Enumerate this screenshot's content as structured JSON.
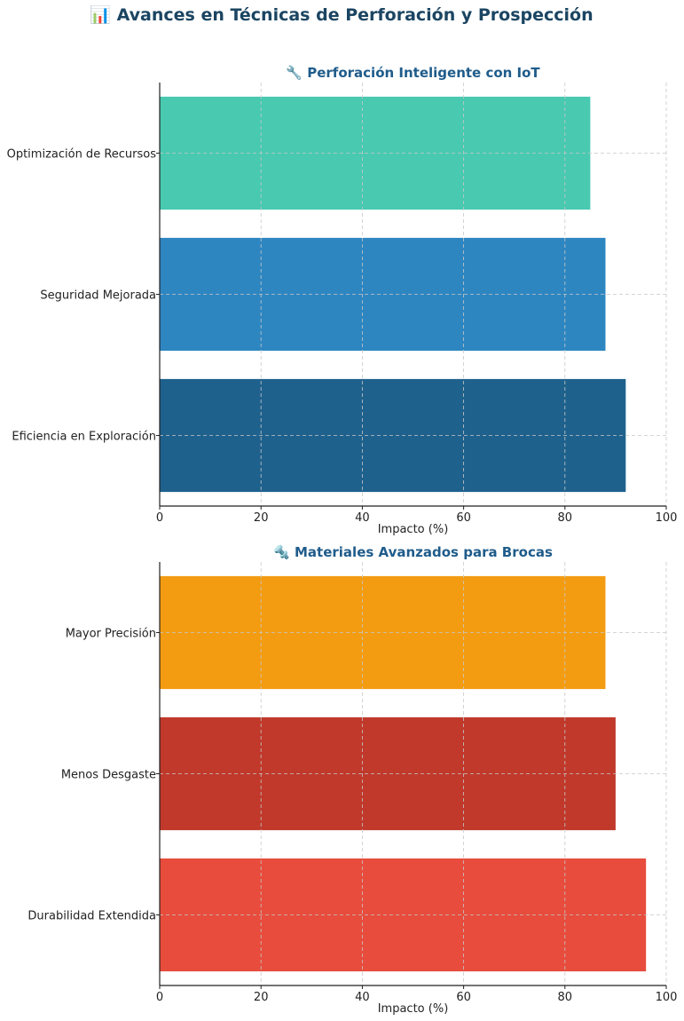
{
  "figure": {
    "title": "📊 Avances en Técnicas de Perforación y Prospección",
    "title_color": "#1b4562",
    "subtitle_color": "#1f5c8b"
  },
  "chart_data": [
    {
      "type": "bar",
      "orientation": "horizontal",
      "title": "🔧 Perforación Inteligente con IoT",
      "xlabel": "Impacto (%)",
      "ylabel": "",
      "xlim": [
        0,
        100
      ],
      "xticks": [
        "0",
        "20",
        "40",
        "60",
        "80",
        "100"
      ],
      "grid": true,
      "categories": [
        "Eficiencia en Exploración",
        "Seguridad Mejorada",
        "Optimización de Recursos"
      ],
      "values": [
        92,
        88,
        85
      ],
      "colors": [
        "#1f618d",
        "#2e86c1",
        "#48c9b0"
      ]
    },
    {
      "type": "bar",
      "orientation": "horizontal",
      "title": "🔩 Materiales Avanzados para Brocas",
      "xlabel": "Impacto (%)",
      "ylabel": "",
      "xlim": [
        0,
        100
      ],
      "xticks": [
        "0",
        "20",
        "40",
        "60",
        "80",
        "100"
      ],
      "grid": true,
      "categories": [
        "Durabilidad Extendida",
        "Menos Desgaste",
        "Mayor Precisión"
      ],
      "values": [
        96,
        90,
        88
      ],
      "colors": [
        "#e74c3c",
        "#c0392b",
        "#f39c12"
      ]
    }
  ]
}
